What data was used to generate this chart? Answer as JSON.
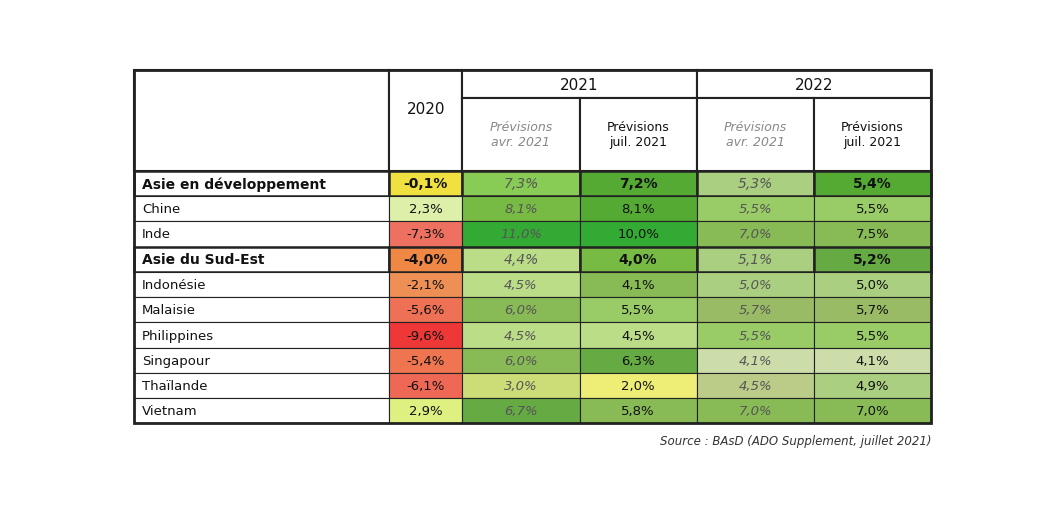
{
  "rows": [
    {
      "label": "Asie en développement",
      "bold": true,
      "values": [
        "-0,1%",
        "7,3%",
        "7,2%",
        "5,3%",
        "5,4%"
      ],
      "bold_vals": [
        true,
        false,
        true,
        false,
        true
      ]
    },
    {
      "label": "Chine",
      "bold": false,
      "values": [
        "2,3%",
        "8,1%",
        "8,1%",
        "5,5%",
        "5,5%"
      ],
      "bold_vals": [
        false,
        false,
        false,
        false,
        false
      ]
    },
    {
      "label": "Inde",
      "bold": false,
      "values": [
        "-7,3%",
        "11,0%",
        "10,0%",
        "7,0%",
        "7,5%"
      ],
      "bold_vals": [
        false,
        false,
        false,
        false,
        false
      ]
    },
    {
      "label": "Asie du Sud-Est",
      "bold": true,
      "values": [
        "-4,0%",
        "4,4%",
        "4,0%",
        "5,1%",
        "5,2%"
      ],
      "bold_vals": [
        true,
        false,
        true,
        false,
        true
      ]
    },
    {
      "label": "Indonésie",
      "bold": false,
      "values": [
        "-2,1%",
        "4,5%",
        "4,1%",
        "5,0%",
        "5,0%"
      ],
      "bold_vals": [
        false,
        false,
        false,
        false,
        false
      ]
    },
    {
      "label": "Malaisie",
      "bold": false,
      "values": [
        "-5,6%",
        "6,0%",
        "5,5%",
        "5,7%",
        "5,7%"
      ],
      "bold_vals": [
        false,
        false,
        false,
        false,
        false
      ]
    },
    {
      "label": "Philippines",
      "bold": false,
      "values": [
        "-9,6%",
        "4,5%",
        "4,5%",
        "5,5%",
        "5,5%"
      ],
      "bold_vals": [
        false,
        false,
        false,
        false,
        false
      ]
    },
    {
      "label": "Singapour",
      "bold": false,
      "values": [
        "-5,4%",
        "6,0%",
        "6,3%",
        "4,1%",
        "4,1%"
      ],
      "bold_vals": [
        false,
        false,
        false,
        false,
        false
      ]
    },
    {
      "label": "Thaïlande",
      "bold": false,
      "values": [
        "-6,1%",
        "3,0%",
        "2,0%",
        "4,5%",
        "4,9%"
      ],
      "bold_vals": [
        false,
        false,
        false,
        false,
        false
      ]
    },
    {
      "label": "Vietnam",
      "bold": false,
      "values": [
        "2,9%",
        "6,7%",
        "5,8%",
        "7,0%",
        "7,0%"
      ],
      "bold_vals": [
        false,
        false,
        false,
        false,
        false
      ]
    }
  ],
  "cell_colors": [
    [
      "#f0e040",
      "#88cc55",
      "#55aa33",
      "#aacf80",
      "#55aa33"
    ],
    [
      "#ddf0aa",
      "#77bb44",
      "#55aa33",
      "#99cc66",
      "#99cc66"
    ],
    [
      "#ee7060",
      "#33aa33",
      "#33aa33",
      "#88bb55",
      "#88bb55"
    ],
    [
      "#ee8844",
      "#bbdd88",
      "#77bb44",
      "#aacf80",
      "#66aa44"
    ],
    [
      "#ee9055",
      "#bbdd88",
      "#88bb55",
      "#aacf80",
      "#aacf80"
    ],
    [
      "#ee7055",
      "#88bb55",
      "#99cc66",
      "#99bb66",
      "#99bb66"
    ],
    [
      "#ee3838",
      "#bbdd88",
      "#bbdd88",
      "#99cc66",
      "#99cc66"
    ],
    [
      "#ee7550",
      "#88bb55",
      "#66aa44",
      "#ccddaa",
      "#ccddaa"
    ],
    [
      "#ee6855",
      "#ccdd77",
      "#eeee77",
      "#bbcc88",
      "#aacf80"
    ],
    [
      "#ddf080",
      "#66aa44",
      "#88bb55",
      "#88bb55",
      "#88bb55"
    ]
  ],
  "source_text": "Source : BAsD (ADO Supplement, juillet 2021)",
  "border_color": "#222222"
}
